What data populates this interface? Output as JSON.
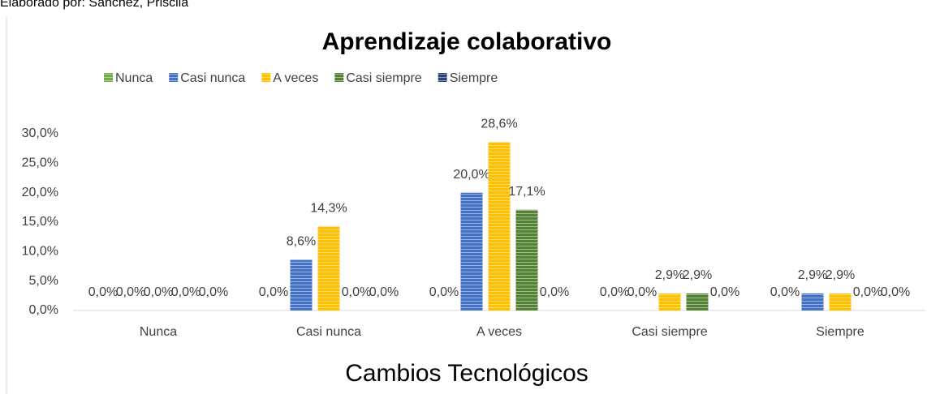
{
  "caption": "Elaborado por: Sanchez, Priscila",
  "chart_data": {
    "type": "bar",
    "title": "Aprendizaje colaborativo",
    "x_label": "Cambios Tecnológicos",
    "categories": [
      "Nunca",
      "Casi nunca",
      "A veces",
      "Casi siempre",
      "Siempre"
    ],
    "series": [
      {
        "name": "Nunca",
        "color": "#70ad47",
        "values": [
          0,
          0,
          0,
          0,
          0
        ],
        "value_labels": [
          "0,0%",
          "0,0%",
          "0,0%",
          "0,0%",
          "0,0%"
        ]
      },
      {
        "name": "Casi nunca",
        "color": "#4472c4",
        "values": [
          0,
          8.6,
          20.0,
          0,
          2.9
        ],
        "value_labels": [
          "0,0%",
          "8,6%",
          "20,0%",
          "0,0%",
          "2,9%"
        ]
      },
      {
        "name": "A veces",
        "color": "#ffc000",
        "values": [
          0,
          14.3,
          28.6,
          2.9,
          2.9
        ],
        "value_labels": [
          "0,0%",
          "14,3%",
          "28,6%",
          "2,9%",
          "2,9%"
        ]
      },
      {
        "name": "Casi siempre",
        "color": "#548235",
        "values": [
          0,
          0,
          17.1,
          2.9,
          0
        ],
        "value_labels": [
          "0,0%",
          "0,0%",
          "17,1%",
          "2,9%",
          "0,0%"
        ]
      },
      {
        "name": "Siempre",
        "color": "#264478",
        "values": [
          0,
          0,
          0,
          0,
          0
        ],
        "value_labels": [
          "0,0%",
          "0,0%",
          "0,0%",
          "0,0%",
          "0,0%"
        ]
      }
    ],
    "ylim": [
      0,
      30
    ],
    "yticks": [
      {
        "value": 0,
        "label": "0,0%"
      },
      {
        "value": 5,
        "label": "5,0%"
      },
      {
        "value": 10,
        "label": "10,0%"
      },
      {
        "value": 15,
        "label": "15,0%"
      },
      {
        "value": 20,
        "label": "20,0%"
      },
      {
        "value": 25,
        "label": "25,0%"
      },
      {
        "value": 30,
        "label": "30,0%"
      }
    ],
    "grid": false,
    "legend": "top"
  }
}
